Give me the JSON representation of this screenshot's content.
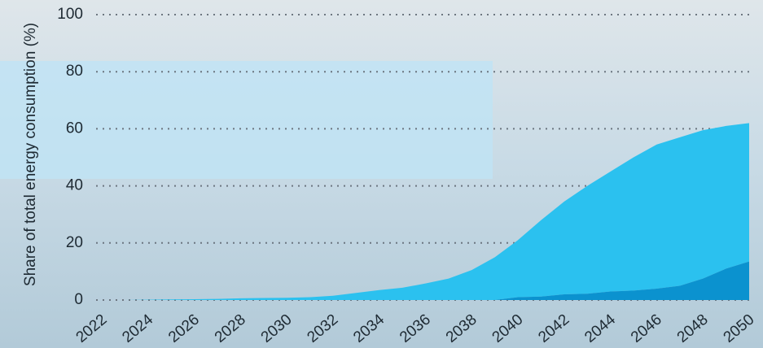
{
  "chart_data": {
    "type": "area",
    "stacked": true,
    "y_label": "Share of total energy consumption (%)",
    "x": [
      2022,
      2023,
      2024,
      2025,
      2026,
      2027,
      2028,
      2029,
      2030,
      2031,
      2032,
      2033,
      2034,
      2035,
      2036,
      2037,
      2038,
      2039,
      2040,
      2041,
      2042,
      2043,
      2044,
      2045,
      2046,
      2047,
      2048,
      2049,
      2050
    ],
    "series": [
      {
        "color": "#0b92cf",
        "values": [
          0,
          0,
          0,
          0,
          0,
          0,
          0,
          0,
          0,
          0,
          0,
          0,
          0,
          0,
          0,
          0,
          0,
          0,
          1,
          1.2,
          2,
          2.2,
          3,
          3.3,
          4,
          5,
          7.5,
          11,
          13.5
        ]
      },
      {
        "color": "#2bc1ef",
        "values": [
          0,
          0,
          0.1,
          0.2,
          0.3,
          0.4,
          0.6,
          0.7,
          0.8,
          1,
          1.5,
          2.5,
          3.5,
          4.3,
          5.8,
          7.5,
          10.5,
          15,
          20,
          26.8,
          32.5,
          37.8,
          42,
          46.7,
          50.5,
          52,
          52,
          50,
          48.5
        ]
      }
    ],
    "xlim": [
      2022,
      2050
    ],
    "xticks": [
      2022,
      2024,
      2026,
      2028,
      2030,
      2032,
      2034,
      2036,
      2038,
      2040,
      2042,
      2044,
      2046,
      2048,
      2050
    ],
    "ylim": [
      0,
      100
    ],
    "yticks": [
      0,
      20,
      40,
      60,
      80,
      100
    ],
    "grid": true
  }
}
